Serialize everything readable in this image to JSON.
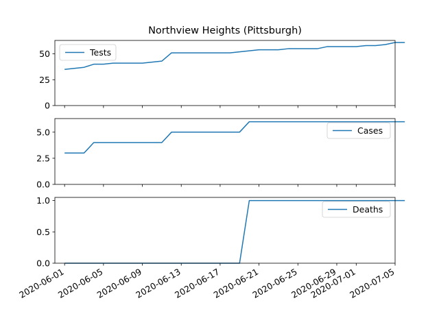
{
  "chart_data": {
    "type": "line",
    "title": "Northview Heights (Pittsburgh)",
    "x_tick_labels": [
      "2020-06-01",
      "2020-06-05",
      "2020-06-09",
      "2020-06-13",
      "2020-06-17",
      "2020-06-21",
      "2020-06-25",
      "2020-06-29",
      "2020-07-01",
      "2020-07-05"
    ],
    "x_range": [
      "2020-05-31",
      "2020-07-05"
    ],
    "line_color": "#1f77b4",
    "grid": false,
    "panels": [
      {
        "series_name": "Tests",
        "legend_position": "upper-left",
        "ylim": [
          0,
          63
        ],
        "y_ticks": [
          0,
          25,
          50
        ],
        "y_tick_labels": [
          "0",
          "25",
          "50"
        ],
        "points": [
          [
            "2020-06-01",
            35
          ],
          [
            "2020-06-02",
            36
          ],
          [
            "2020-06-03",
            37
          ],
          [
            "2020-06-04",
            40
          ],
          [
            "2020-06-05",
            40
          ],
          [
            "2020-06-06",
            41
          ],
          [
            "2020-06-07",
            41
          ],
          [
            "2020-06-08",
            41
          ],
          [
            "2020-06-09",
            41
          ],
          [
            "2020-06-10",
            42
          ],
          [
            "2020-06-11",
            43
          ],
          [
            "2020-06-12",
            51
          ],
          [
            "2020-06-13",
            51
          ],
          [
            "2020-06-14",
            51
          ],
          [
            "2020-06-15",
            51
          ],
          [
            "2020-06-16",
            51
          ],
          [
            "2020-06-17",
            51
          ],
          [
            "2020-06-18",
            51
          ],
          [
            "2020-06-19",
            52
          ],
          [
            "2020-06-20",
            53
          ],
          [
            "2020-06-21",
            54
          ],
          [
            "2020-06-22",
            54
          ],
          [
            "2020-06-23",
            54
          ],
          [
            "2020-06-24",
            55
          ],
          [
            "2020-06-25",
            55
          ],
          [
            "2020-06-26",
            55
          ],
          [
            "2020-06-27",
            55
          ],
          [
            "2020-06-28",
            57
          ],
          [
            "2020-06-29",
            57
          ],
          [
            "2020-06-30",
            57
          ],
          [
            "2020-07-01",
            57
          ],
          [
            "2020-07-02",
            58
          ],
          [
            "2020-07-03",
            58
          ],
          [
            "2020-07-04",
            59
          ],
          [
            "2020-07-05",
            61
          ],
          [
            "2020-07-06",
            61
          ]
        ]
      },
      {
        "series_name": "Cases",
        "legend_position": "upper-right",
        "ylim": [
          0,
          6.3
        ],
        "y_ticks": [
          0,
          2.5,
          5
        ],
        "y_tick_labels": [
          "0.0",
          "2.5",
          "5.0"
        ],
        "points": [
          [
            "2020-06-01",
            3
          ],
          [
            "2020-06-03",
            3
          ],
          [
            "2020-06-04",
            4
          ],
          [
            "2020-06-10",
            4
          ],
          [
            "2020-06-11",
            4
          ],
          [
            "2020-06-12",
            5
          ],
          [
            "2020-06-19",
            5
          ],
          [
            "2020-06-20",
            6
          ],
          [
            "2020-07-06",
            6
          ]
        ]
      },
      {
        "series_name": "Deaths",
        "legend_position": "upper-right",
        "ylim": [
          0,
          1.05
        ],
        "y_ticks": [
          0,
          0.5,
          1
        ],
        "y_tick_labels": [
          "0.0",
          "0.5",
          "1.0"
        ],
        "points": [
          [
            "2020-06-01",
            0
          ],
          [
            "2020-06-19",
            0
          ],
          [
            "2020-06-20",
            1
          ],
          [
            "2020-07-06",
            1
          ]
        ]
      }
    ]
  }
}
